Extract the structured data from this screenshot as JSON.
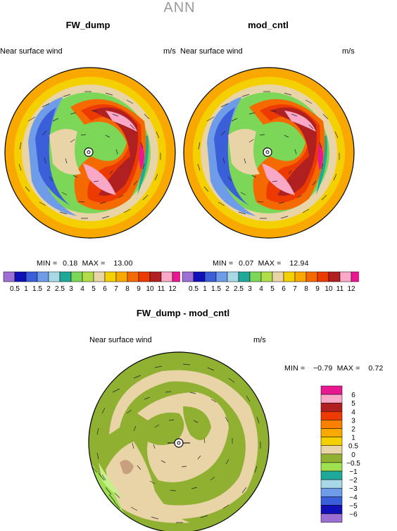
{
  "season": "ANN",
  "panels": [
    {
      "title": "FW_dump",
      "variable": "Near surface wind",
      "units": "m/s",
      "min_label": "MIN =",
      "min": "0.18",
      "max_label": "MAX =",
      "max": "13.00"
    },
    {
      "title": "mod_cntl",
      "variable": "Near surface wind",
      "units": "m/s",
      "min_label": "MIN =",
      "min": "0.07",
      "max_label": "MAX =",
      "max": "12.94"
    }
  ],
  "diff_panel": {
    "title": "FW_dump - mod_cntl",
    "variable": "Near surface wind",
    "units": "m/s",
    "min_label": "MIN =",
    "min": "−0.79",
    "max_label": "MAX =",
    "max": "0.72"
  },
  "abs_colorbar": {
    "labels": [
      "0.5",
      "1",
      "1.5",
      "2",
      "2.5",
      "3",
      "4",
      "5",
      "6",
      "7",
      "8",
      "9",
      "10",
      "11",
      "12"
    ],
    "colors": [
      "#9b6fd4",
      "#1010b8",
      "#3a5fd8",
      "#6f9ce8",
      "#a8d8e6",
      "#1fa99a",
      "#7cd658",
      "#b0dc48",
      "#e9d4a8",
      "#f4d000",
      "#f9a800",
      "#f56a00",
      "#ec3a00",
      "#b02020",
      "#f9a8c8",
      "#e81890"
    ]
  },
  "diff_colorbar": {
    "labels": [
      "6",
      "5",
      "4",
      "3",
      "2",
      "1",
      "0.5",
      "0",
      "−0.5",
      "−1",
      "−2",
      "−3",
      "−4",
      "−5",
      "−6"
    ],
    "colors": [
      "#e81890",
      "#f9a8c8",
      "#b02020",
      "#ec3a00",
      "#f98000",
      "#f9a800",
      "#f4d000",
      "#e9d4a8",
      "#8fb030",
      "#9fe050",
      "#1fa99a",
      "#a8d8e6",
      "#6f9ce8",
      "#3a5fd8",
      "#1010b8",
      "#9b6fd4"
    ]
  }
}
